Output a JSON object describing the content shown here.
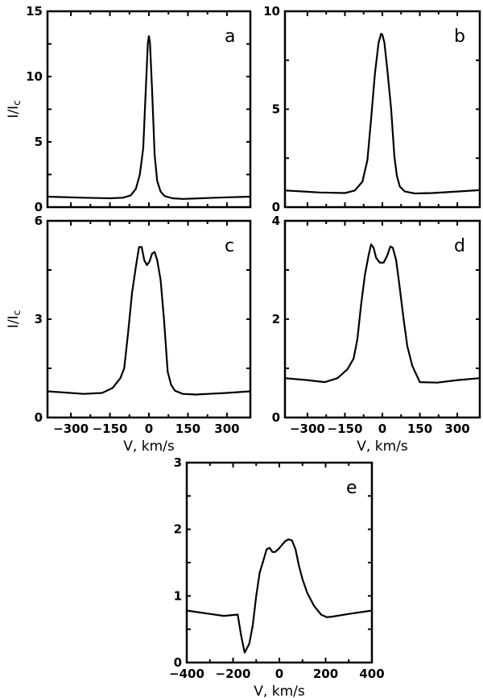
{
  "chart_data": [
    {
      "type": "line",
      "panel": "a",
      "ylabel": "I/Ic",
      "xlabel": "",
      "xlim": [
        -390,
        390
      ],
      "ylim": [
        0,
        15
      ],
      "xticks": [
        -300,
        -150,
        0,
        150,
        300
      ],
      "xtick_labels_shown": false,
      "yticks": [
        0,
        5,
        10,
        15
      ],
      "x": [
        -390,
        -250,
        -150,
        -100,
        -70,
        -50,
        -35,
        -22,
        -12,
        -4,
        0,
        4,
        12,
        22,
        32,
        45,
        60,
        90,
        130,
        200,
        300,
        390
      ],
      "y": [
        0.8,
        0.72,
        0.68,
        0.72,
        0.9,
        1.4,
        2.5,
        4.5,
        9,
        12.6,
        13.1,
        12.6,
        9,
        4,
        2,
        1.2,
        0.85,
        0.68,
        0.63,
        0.68,
        0.75,
        0.8
      ]
    },
    {
      "type": "line",
      "panel": "b",
      "ylabel": "",
      "xlabel": "",
      "xlim": [
        -390,
        390
      ],
      "ylim": [
        0,
        10
      ],
      "xticks": [
        -300,
        -150,
        0,
        150,
        300
      ],
      "xtick_labels_shown": false,
      "yticks": [
        0,
        5,
        10
      ],
      "x": [
        -390,
        -250,
        -150,
        -110,
        -80,
        -60,
        -45,
        -30,
        -15,
        -5,
        0,
        8,
        20,
        35,
        48,
        58,
        70,
        90,
        130,
        200,
        300,
        390
      ],
      "y": [
        0.85,
        0.75,
        0.72,
        0.85,
        1.3,
        2.4,
        4.5,
        6.8,
        8.4,
        8.85,
        8.8,
        8.4,
        7,
        5,
        2.6,
        1.6,
        1.05,
        0.8,
        0.7,
        0.72,
        0.8,
        0.87
      ]
    },
    {
      "type": "line",
      "panel": "c",
      "ylabel": "I/Ic",
      "xlabel": "V, km/s",
      "xlim": [
        -390,
        390
      ],
      "ylim": [
        0,
        6
      ],
      "xticks": [
        -300,
        -150,
        0,
        150,
        300
      ],
      "xtick_labels_shown": true,
      "yticks": [
        0,
        3,
        6
      ],
      "x": [
        -390,
        -250,
        -180,
        -140,
        -110,
        -95,
        -80,
        -65,
        -50,
        -38,
        -28,
        -18,
        -8,
        2,
        12,
        22,
        32,
        45,
        58,
        72,
        85,
        100,
        130,
        180,
        300,
        390
      ],
      "y": [
        0.8,
        0.72,
        0.75,
        0.9,
        1.2,
        1.5,
        2.6,
        3.8,
        4.6,
        5.2,
        5.2,
        4.8,
        4.65,
        4.75,
        5.0,
        5.05,
        4.8,
        4.2,
        3.0,
        1.4,
        1.0,
        0.82,
        0.72,
        0.7,
        0.75,
        0.8
      ]
    },
    {
      "type": "line",
      "panel": "d",
      "ylabel": "",
      "xlabel": "V, km/s",
      "xlim": [
        -390,
        390
      ],
      "ylim": [
        0,
        4
      ],
      "xticks": [
        -300,
        -150,
        0,
        150,
        300
      ],
      "xtick_labels_shown": true,
      "yticks": [
        0,
        2,
        4
      ],
      "x": [
        -390,
        -300,
        -230,
        -180,
        -140,
        -115,
        -100,
        -85,
        -70,
        -55,
        -45,
        -35,
        -25,
        -10,
        5,
        20,
        32,
        42,
        55,
        68,
        85,
        100,
        120,
        150,
        220,
        300,
        390
      ],
      "y": [
        0.8,
        0.76,
        0.72,
        0.8,
        0.98,
        1.2,
        1.6,
        2.3,
        2.9,
        3.3,
        3.52,
        3.45,
        3.25,
        3.15,
        3.15,
        3.3,
        3.48,
        3.45,
        3.2,
        2.7,
        2.0,
        1.45,
        1.05,
        0.72,
        0.71,
        0.76,
        0.8
      ]
    },
    {
      "type": "line",
      "panel": "e",
      "ylabel": "",
      "xlabel": "V, km/s",
      "xlim": [
        -400,
        400
      ],
      "ylim": [
        0,
        3
      ],
      "xticks": [
        -400,
        -200,
        0,
        200,
        400
      ],
      "xtick_labels_shown": true,
      "yticks": [
        0,
        1,
        2,
        3
      ],
      "x": [
        -400,
        -300,
        -240,
        -180,
        -165,
        -150,
        -130,
        -115,
        -100,
        -85,
        -70,
        -55,
        -42,
        -30,
        -18,
        -5,
        10,
        25,
        40,
        55,
        70,
        85,
        100,
        120,
        150,
        180,
        205,
        230,
        300,
        400
      ],
      "y": [
        0.78,
        0.73,
        0.7,
        0.72,
        0.4,
        0.15,
        0.28,
        0.55,
        1.0,
        1.35,
        1.52,
        1.7,
        1.72,
        1.66,
        1.66,
        1.7,
        1.76,
        1.82,
        1.85,
        1.83,
        1.7,
        1.45,
        1.25,
        1.05,
        0.85,
        0.72,
        0.68,
        0.69,
        0.73,
        0.78
      ]
    }
  ],
  "panel_letters": [
    "a",
    "b",
    "c",
    "d",
    "e"
  ],
  "axis_titles": {
    "y": "I/I",
    "y_sub": "c",
    "x": "V, km/s"
  }
}
